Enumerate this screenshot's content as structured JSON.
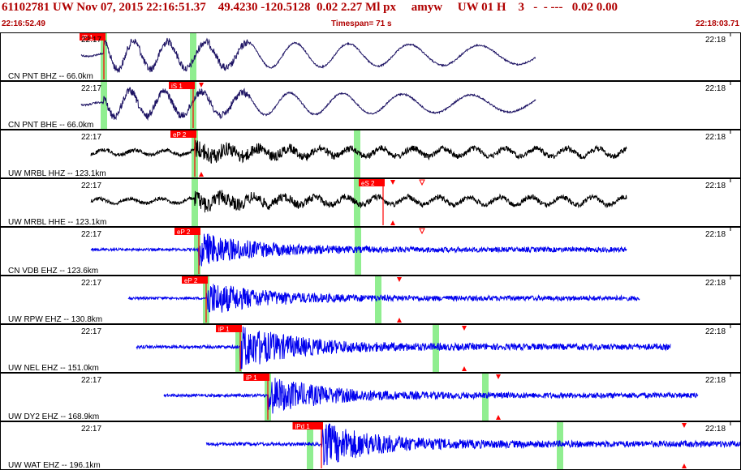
{
  "header": {
    "title": "61102781 UW Nov 07, 2015 22:16:51.37    49.4230 -120.5128  0.02 2.27 Ml px     amyw     UW 01 H    3   -  - ---   0.02 0.00",
    "start_time": "22:16:52.49",
    "timespan": "Timespan= 71 s",
    "end_time": "22:18:03.71"
  },
  "colors": {
    "trace_navy": "#1e1464",
    "trace_black": "#000000",
    "trace_blue": "#0000ee",
    "pick_red": "#ff0000",
    "window_green": "#90ee90",
    "header_red": "#b00000"
  },
  "panels": [
    {
      "label": "CN PNT BHZ -- 66.0km",
      "left_time": "22:17",
      "right_time": "22:18",
      "color": "trace_navy",
      "type": "lp",
      "start": 100,
      "end": 660,
      "onset": 128,
      "amp": 18,
      "pick": {
        "label": "iP 1",
        "pos": 128
      },
      "greens": [
        128,
        238
      ],
      "markers": []
    },
    {
      "label": "CN PNT BHE -- 66.0km",
      "left_time": "22:17",
      "right_time": "22:18",
      "color": "trace_navy",
      "type": "lp",
      "start": 100,
      "end": 660,
      "onset": 128,
      "amp": 16,
      "pick": {
        "label": "iS 1",
        "pos": 238
      },
      "greens": [
        128,
        238
      ],
      "markers": [
        {
          "pos": 248,
          "kind": "down"
        }
      ]
    },
    {
      "label": "UW MRBL HHZ -- 123.1km",
      "left_time": "22:17",
      "right_time": "22:18",
      "color": "trace_black",
      "type": "bb",
      "start": 112,
      "end": 772,
      "onset": 240,
      "amp": 15,
      "pick": {
        "label": "eP 2",
        "pos": 240
      },
      "greens": [
        240,
        440
      ],
      "markers": [
        {
          "pos": 248,
          "kind": "up"
        }
      ]
    },
    {
      "label": "UW MRBL HHE -- 123.1km",
      "left_time": "22:17",
      "right_time": "22:18",
      "color": "trace_black",
      "type": "bb",
      "start": 112,
      "end": 772,
      "onset": 240,
      "amp": 14,
      "pick": {
        "label": "eS 2",
        "pos": 472
      },
      "greens": [
        240,
        440
      ],
      "markers": [
        {
          "pos": 484,
          "kind": "down"
        },
        {
          "pos": 484,
          "kind": "up"
        },
        {
          "pos": 520,
          "kind": "open"
        }
      ]
    },
    {
      "label": "CN VDB EHZ -- 123.6km",
      "left_time": "22:17",
      "right_time": "22:18",
      "color": "trace_blue",
      "type": "sp",
      "start": 112,
      "end": 772,
      "onset": 245,
      "amp": 20,
      "pick": {
        "label": "eP 2",
        "pos": 245
      },
      "greens": [
        243,
        441
      ],
      "markers": [
        {
          "pos": 520,
          "kind": "open"
        }
      ]
    },
    {
      "label": "UW RPW EHZ -- 130.8km",
      "left_time": "22:17",
      "right_time": "22:18",
      "color": "trace_blue",
      "type": "sp",
      "start": 158,
      "end": 788,
      "onset": 254,
      "amp": 20,
      "pick": {
        "label": "eP 2",
        "pos": 254
      },
      "greens": [
        254,
        466
      ],
      "markers": [
        {
          "pos": 492,
          "kind": "down"
        },
        {
          "pos": 492,
          "kind": "up"
        }
      ]
    },
    {
      "label": "UW NEL EHZ -- 151.0km",
      "left_time": "22:17",
      "right_time": "22:18",
      "color": "trace_blue",
      "type": "sp",
      "start": 168,
      "end": 826,
      "onset": 296,
      "amp": 25,
      "pick": {
        "label": "iP 1",
        "pos": 296
      },
      "greens": [
        294,
        537
      ],
      "markers": [
        {
          "pos": 572,
          "kind": "down"
        },
        {
          "pos": 572,
          "kind": "up"
        }
      ]
    },
    {
      "label": "UW DY2 EHZ -- 168.9km",
      "left_time": "22:17",
      "right_time": "22:18",
      "color": "trace_blue",
      "type": "sp",
      "start": 202,
      "end": 860,
      "onset": 330,
      "amp": 22,
      "pick": {
        "label": "iP 1",
        "pos": 330
      },
      "greens": [
        330,
        598
      ],
      "markers": [
        {
          "pos": 614,
          "kind": "down"
        },
        {
          "pos": 614,
          "kind": "up"
        }
      ]
    },
    {
      "label": "UW WAT EHZ -- 196.1km",
      "left_time": "22:17",
      "right_time": "22:18",
      "color": "trace_blue",
      "type": "sp",
      "start": 254,
      "end": 913,
      "onset": 396,
      "amp": 25,
      "pick": {
        "label": "iPd 1",
        "pos": 396
      },
      "greens": [
        382,
        690
      ],
      "markers": [
        {
          "pos": 843,
          "kind": "down"
        },
        {
          "pos": 843,
          "kind": "up"
        }
      ]
    }
  ]
}
